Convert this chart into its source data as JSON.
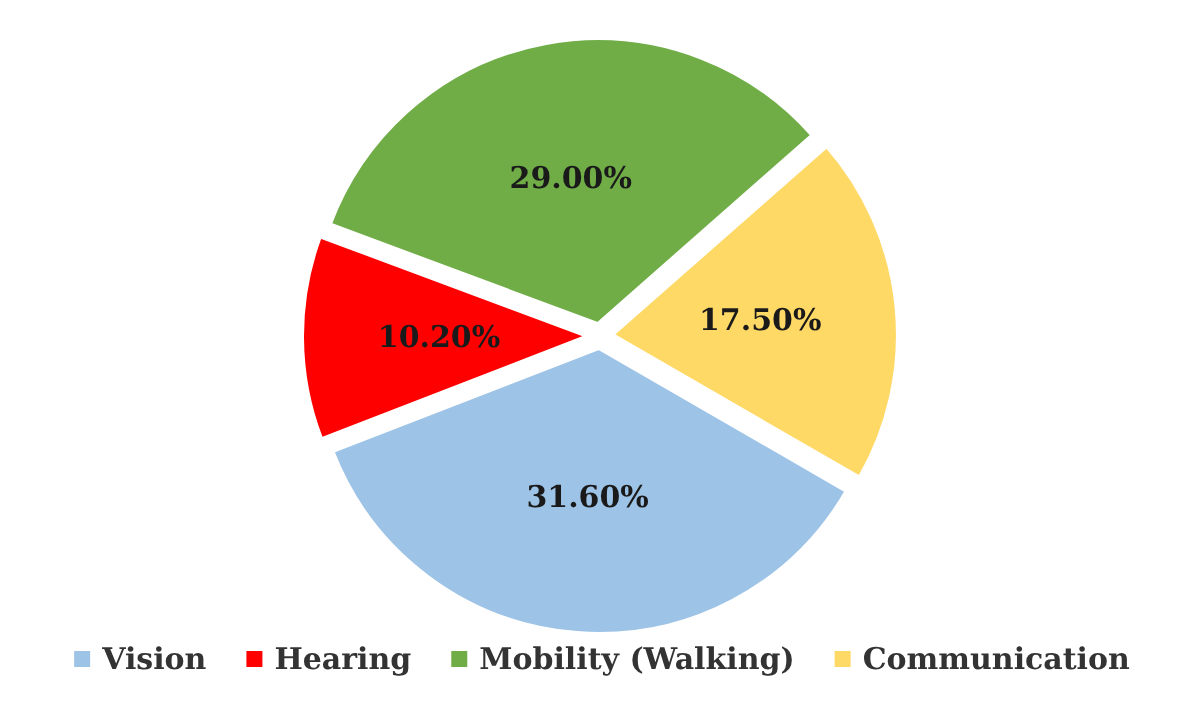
{
  "chart_data": {
    "type": "pie",
    "categories": [
      "Vision",
      "Hearing",
      "Mobility (Walking)",
      "Communication"
    ],
    "values": [
      31.6,
      10.2,
      29.0,
      17.5
    ],
    "colors": [
      "#9dc3e6",
      "#ff0000",
      "#70ad47",
      "#ffd966"
    ],
    "value_labels": [
      "31.60%",
      "10.20%",
      "29.00%",
      "17.50%"
    ],
    "legend": "bottom"
  }
}
